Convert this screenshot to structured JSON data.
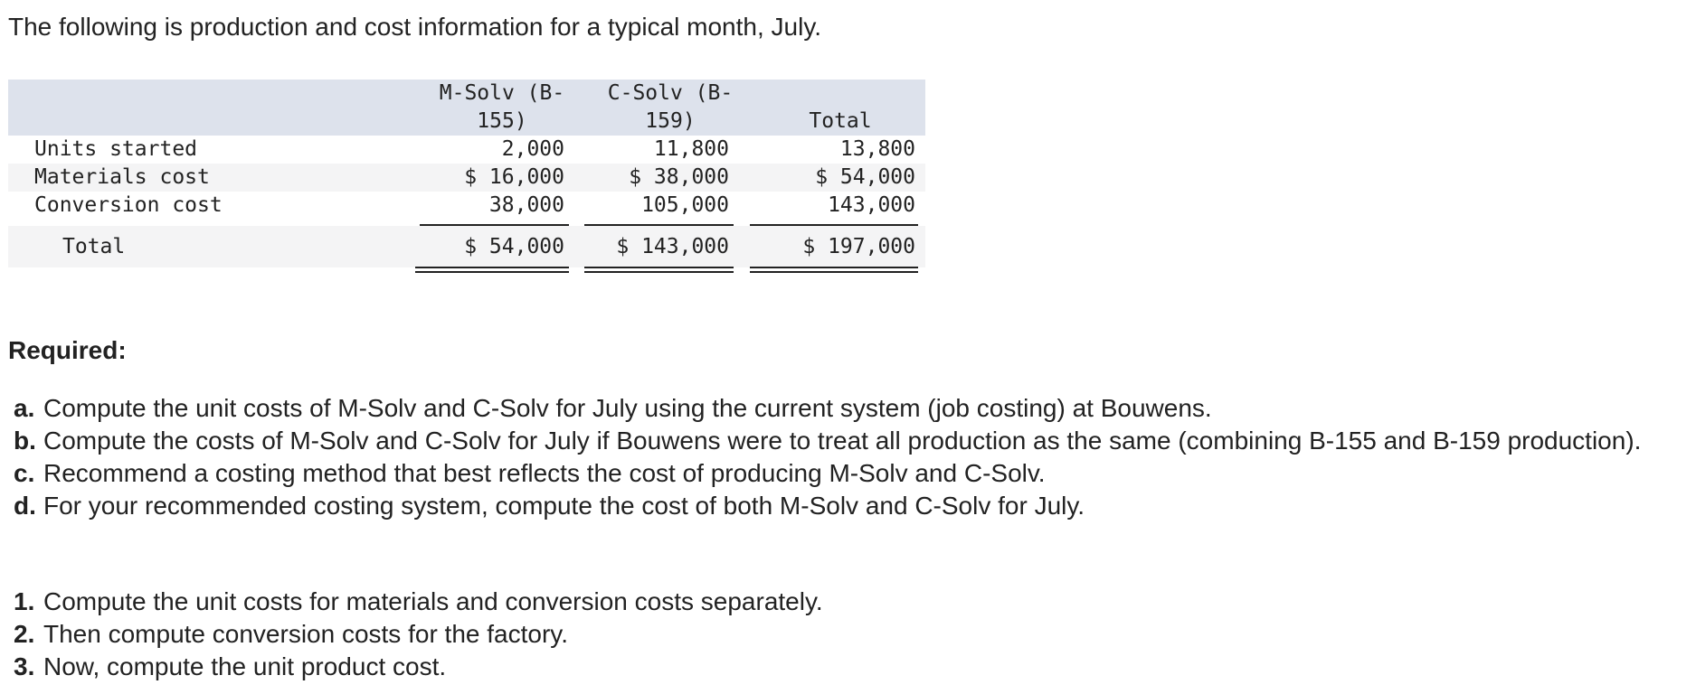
{
  "intro": "The following is production and cost information for a typical month, July.",
  "table": {
    "headers": [
      "M-Solv (B-\n155)",
      "C-Solv (B-\n159)",
      "Total"
    ],
    "rows": [
      {
        "label": "Units started",
        "values": [
          "2,000",
          "11,800",
          "13,800"
        ]
      },
      {
        "label": "Materials cost",
        "values": [
          "$ 16,000",
          "$ 38,000",
          "$ 54,000"
        ]
      },
      {
        "label": "Conversion cost",
        "values": [
          "38,000",
          "105,000",
          "143,000"
        ]
      }
    ],
    "total": {
      "label": "Total",
      "values": [
        "$ 54,000",
        "$ 143,000",
        "$ 197,000"
      ]
    }
  },
  "required": {
    "heading": "Required:",
    "items": [
      {
        "marker": "a.",
        "text": "Compute the unit costs of M-Solv and C-Solv for July using the current system (job costing) at Bouwens."
      },
      {
        "marker": "b.",
        "text": "Compute the costs of M-Solv and C-Solv for July if Bouwens were to treat all production as the same (combining B-155 and B-159 production)."
      },
      {
        "marker": "c.",
        "text": "Recommend a costing method that best reflects the cost of producing M-Solv and C-Solv."
      },
      {
        "marker": "d.",
        "text": "For your recommended costing system, compute the cost of both M-Solv and C-Solv for July."
      }
    ]
  },
  "hints": [
    {
      "marker": "1.",
      "text": "Compute the unit costs for materials and conversion costs separately."
    },
    {
      "marker": "2.",
      "text": "Then compute conversion costs for the factory."
    },
    {
      "marker": "3.",
      "text": "Now, compute the unit product cost."
    }
  ]
}
